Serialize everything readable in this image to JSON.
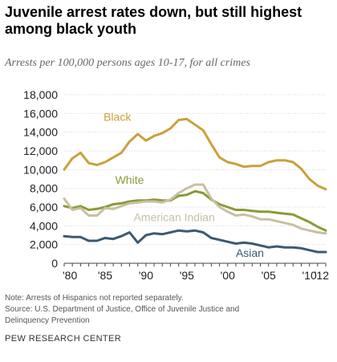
{
  "chart_data": {
    "type": "line",
    "title": "Juvenile arrest rates down, but still highest among black youth",
    "subtitle": "Arrests per 100,000 persons ages 10-17, for all crimes",
    "x": [
      1980,
      1981,
      1982,
      1983,
      1984,
      1985,
      1986,
      1987,
      1988,
      1989,
      1990,
      1991,
      1992,
      1993,
      1994,
      1995,
      1996,
      1997,
      1998,
      1999,
      2000,
      2001,
      2002,
      2003,
      2004,
      2005,
      2006,
      2007,
      2008,
      2009,
      2010,
      2011,
      2012
    ],
    "xticks": [
      1980,
      1985,
      1990,
      1995,
      2000,
      2005,
      2010,
      2012
    ],
    "xtick_labels": [
      "'80",
      "'85",
      "'90",
      "'95",
      "'00",
      "'05",
      "'10",
      "'12"
    ],
    "ylim": [
      0,
      18000
    ],
    "yticks": [
      0,
      2000,
      4000,
      6000,
      8000,
      10000,
      12000,
      14000,
      16000,
      18000
    ],
    "ytick_labels": [
      "0",
      "2,000",
      "4,000",
      "6,000",
      "8,000",
      "10,000",
      "12,000",
      "14,000",
      "16,000",
      "18,000"
    ],
    "grid": true,
    "series": [
      {
        "name": "Black",
        "color": "#c9a13b",
        "values": [
          10000,
          11200,
          11800,
          10700,
          10500,
          10800,
          11300,
          11800,
          13000,
          13800,
          13100,
          13600,
          13900,
          14400,
          15300,
          15400,
          14800,
          14200,
          12700,
          11300,
          10800,
          10600,
          10300,
          10400,
          10400,
          10800,
          11000,
          11000,
          10800,
          10100,
          9000,
          8300,
          7900
        ]
      },
      {
        "name": "White",
        "color": "#8a9a3a",
        "values": [
          6100,
          5900,
          6100,
          5700,
          5800,
          6000,
          6300,
          6400,
          6600,
          6700,
          6700,
          6800,
          6700,
          6700,
          7200,
          7300,
          7700,
          7500,
          6800,
          6300,
          6000,
          5700,
          5700,
          5600,
          5500,
          5500,
          5400,
          5300,
          5200,
          4800,
          4400,
          3900,
          3500
        ]
      },
      {
        "name": "American Indian",
        "color": "#c8c0a2",
        "values": [
          6900,
          5700,
          5900,
          5100,
          5100,
          5900,
          5800,
          6100,
          6400,
          6500,
          6600,
          6600,
          6500,
          6800,
          7500,
          8000,
          8400,
          8400,
          6900,
          6000,
          5500,
          5100,
          5200,
          5000,
          4700,
          4700,
          4500,
          4300,
          4100,
          3700,
          3500,
          3300,
          3200
        ]
      },
      {
        "name": "Asian",
        "color": "#3b5a72",
        "values": [
          2900,
          2800,
          2800,
          2400,
          2400,
          2700,
          2600,
          2900,
          3300,
          2200,
          3000,
          3200,
          3100,
          3300,
          3500,
          3400,
          3500,
          3300,
          2700,
          2500,
          2300,
          2100,
          2200,
          2100,
          1900,
          1700,
          1800,
          1700,
          1700,
          1600,
          1400,
          1200,
          1200
        ]
      }
    ]
  },
  "footer": {
    "note": "Note: Arrests of Hispanics not reported separately.",
    "source_line1": "Source: U.S. Department of Justice, Office of Juvenile Justice and",
    "source_line2": "Delinquency Prevention",
    "brand": "PEW RESEARCH CENTER"
  }
}
